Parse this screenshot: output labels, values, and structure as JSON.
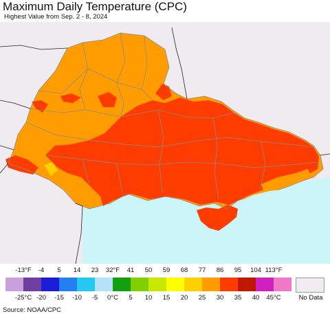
{
  "title": "Maximum Daily Temperature (CPC)",
  "subtitle": "Highest Value from Sep. 2 - 8, 2024",
  "source": "Source: NOAA/CPC",
  "legend": {
    "fahrenheit_ticks": [
      "-13°F",
      "-4",
      "5",
      "14",
      "23",
      "32°F",
      "41",
      "50",
      "59",
      "68",
      "77",
      "86",
      "95",
      "104",
      "113°F"
    ],
    "celsius_ticks": [
      "-25°C",
      "-20",
      "-15",
      "-10",
      "-5",
      "0°C",
      "5",
      "10",
      "15",
      "20",
      "25",
      "30",
      "35",
      "40",
      "45°C"
    ],
    "colors": [
      "#c8a0dc",
      "#6e3fa0",
      "#1c1cd6",
      "#2480f0",
      "#24c8f0",
      "#b4e2f8",
      "#10a010",
      "#80d000",
      "#c8e800",
      "#ffff00",
      "#ffd000",
      "#ff9c00",
      "#ff3c00",
      "#c01800",
      "#d020c0",
      "#f078c8"
    ],
    "no_data_label": "No Data",
    "no_data_color": "#f0ecf0"
  },
  "map": {
    "region": "Ukraine",
    "dominant_ranges": [
      "25–30°C (orange) in the north and west",
      "30–35°C (red-orange) across central, eastern and southern areas"
    ],
    "colors": {
      "land_outside": "#efebef",
      "sea": "#ccf5fa",
      "temp_25_30": "#ff9c00",
      "temp_30_35": "#ff3c00",
      "temp_20_25": "#ffd000"
    }
  }
}
